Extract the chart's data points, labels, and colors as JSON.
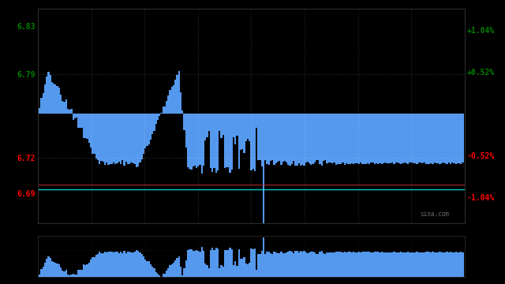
{
  "background_color": "#000000",
  "bar_color": "#5599ee",
  "bar_color_dark": "#3366bb",
  "left_yticks": [
    6.69,
    6.72,
    6.79,
    6.83
  ],
  "left_ytick_labels": [
    "6.69",
    "6.72",
    "6.79",
    "6.83"
  ],
  "left_ytick_colors": [
    "red",
    "red",
    "green",
    "green"
  ],
  "right_ytick_pcts": [
    -1.04,
    -0.52,
    0.0,
    0.52,
    1.04
  ],
  "right_ytick_labels": [
    "-1.04%",
    "-0.52%",
    "",
    "+0.52%",
    "+1.04%"
  ],
  "right_ytick_colors": [
    "red",
    "red",
    "white",
    "green",
    "green"
  ],
  "ymin": 6.665,
  "ymax": 6.845,
  "base_price": 6.757,
  "watermark": "sina.com",
  "num_bars": 242,
  "grid_color": "#ffffff",
  "grid_alpha": 0.25,
  "vgrid_fracs": [
    0.125,
    0.25,
    0.375,
    0.5,
    0.625,
    0.75,
    0.875
  ],
  "hgrid_prices": [
    6.72,
    6.757,
    6.79
  ],
  "cyan_line_price": 6.693,
  "red_line_price": 6.697
}
